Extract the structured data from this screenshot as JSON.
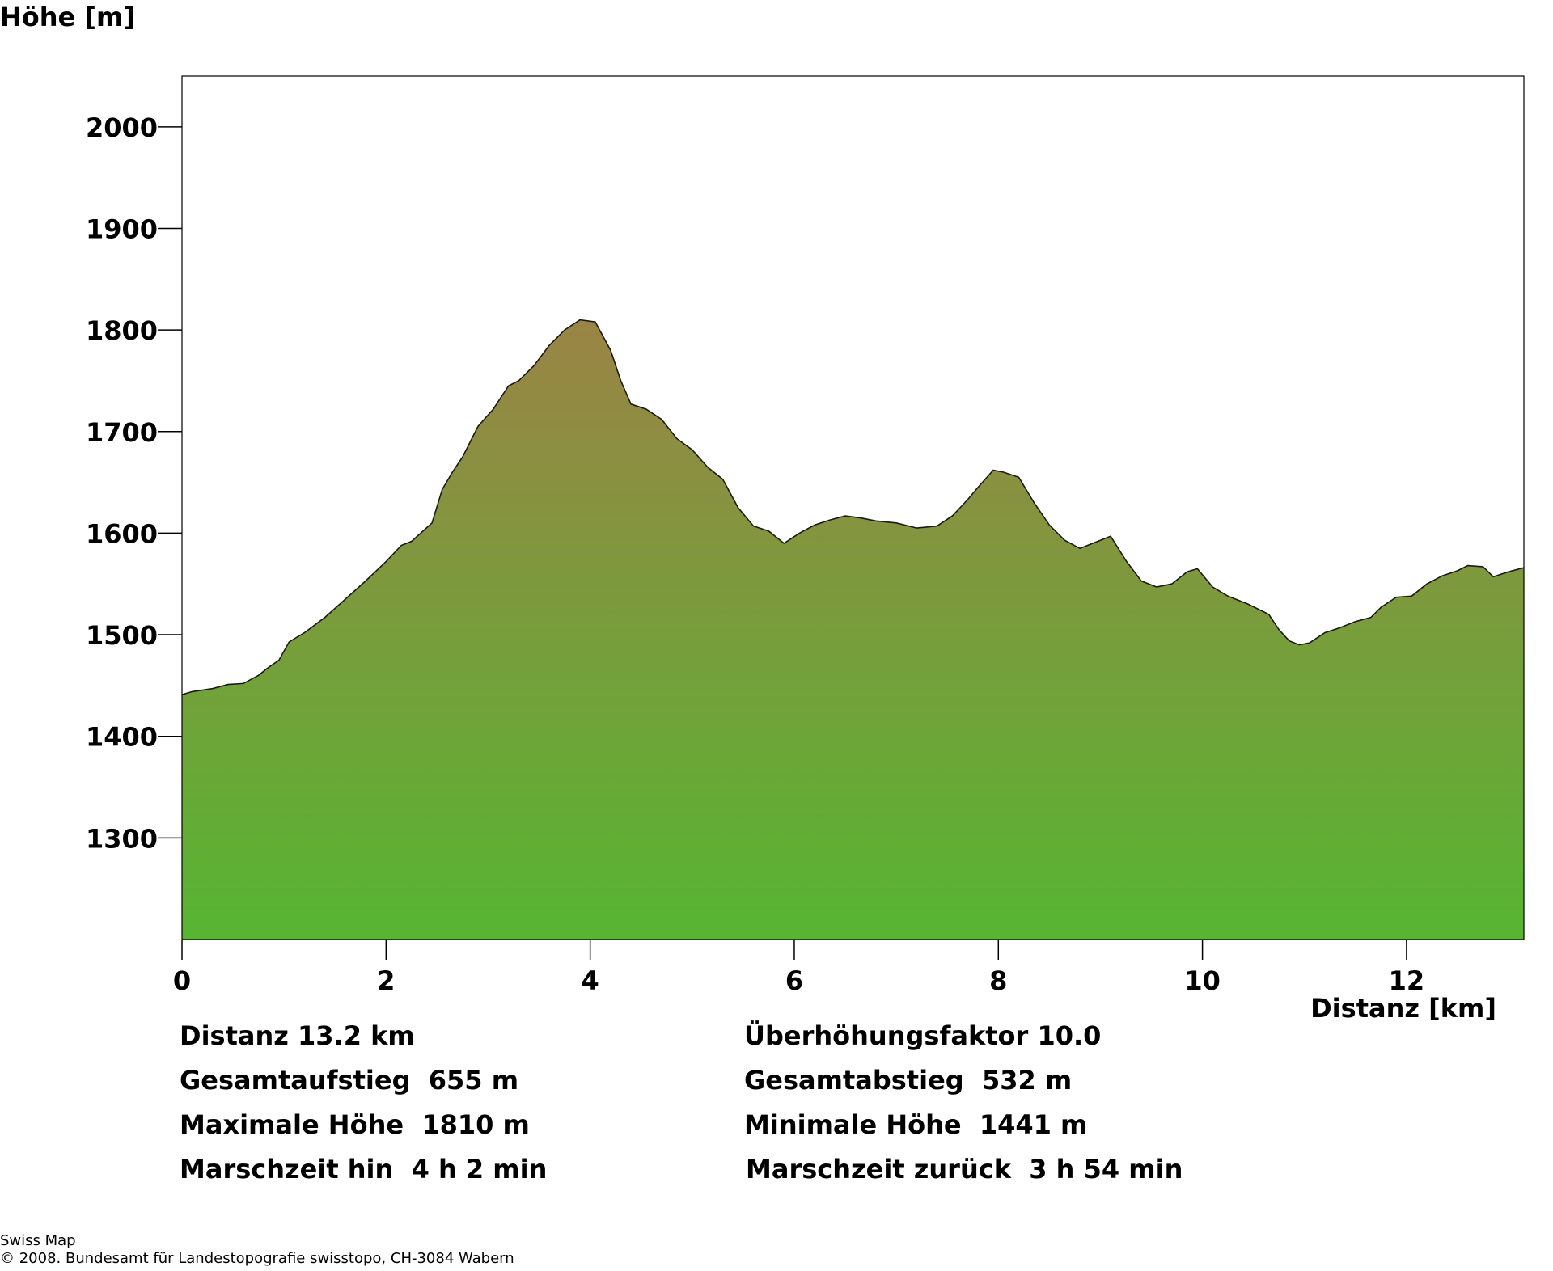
{
  "chart_data": {
    "type": "area",
    "ylabel": "Höhe [m]",
    "xlabel": "Distanz [km]",
    "xlim": [
      0,
      13.15
    ],
    "ylim": [
      1200,
      2050
    ],
    "x_ticks": [
      0,
      2,
      4,
      6,
      8,
      10,
      12
    ],
    "y_ticks": [
      1300,
      1400,
      1500,
      1600,
      1700,
      1800,
      1900,
      2000
    ],
    "fill_top_color": "#9a8445",
    "fill_bottom_color": "#57b532",
    "line_color": "#1a1a1a",
    "series": [
      {
        "x": [
          0,
          0.1,
          0.3,
          0.45,
          0.6,
          0.75,
          0.85,
          0.95,
          1.05,
          1.2,
          1.4,
          1.6,
          1.8,
          2.0,
          2.15,
          2.25,
          2.45,
          2.55,
          2.65,
          2.75,
          2.9,
          3.05,
          3.2,
          3.3,
          3.45,
          3.6,
          3.75,
          3.9,
          4.05,
          4.2,
          4.3,
          4.4,
          4.55,
          4.7,
          4.85,
          5.0,
          5.15,
          5.3,
          5.45,
          5.6,
          5.75,
          5.9,
          6.05,
          6.2,
          6.35,
          6.5,
          6.65,
          6.8,
          7.0,
          7.2,
          7.4,
          7.55,
          7.7,
          7.8,
          7.95,
          8.05,
          8.2,
          8.35,
          8.5,
          8.65,
          8.8,
          9.0,
          9.1,
          9.25,
          9.4,
          9.55,
          9.7,
          9.85,
          9.95,
          10.1,
          10.25,
          10.45,
          10.65,
          10.75,
          10.85,
          10.95,
          11.05,
          11.2,
          11.35,
          11.5,
          11.65,
          11.75,
          11.9,
          12.05,
          12.2,
          12.35,
          12.5,
          12.6,
          12.75,
          12.85,
          13.0,
          13.15
        ],
        "y": [
          1441,
          1444,
          1447,
          1451,
          1452,
          1460,
          1468,
          1475,
          1493,
          1502,
          1517,
          1535,
          1553,
          1572,
          1588,
          1592,
          1610,
          1643,
          1660,
          1675,
          1705,
          1722,
          1745,
          1750,
          1765,
          1785,
          1800,
          1810,
          1808,
          1780,
          1750,
          1727,
          1722,
          1712,
          1693,
          1682,
          1665,
          1653,
          1625,
          1607,
          1602,
          1590,
          1600,
          1608,
          1613,
          1617,
          1615,
          1612,
          1610,
          1605,
          1607,
          1617,
          1633,
          1645,
          1662,
          1660,
          1655,
          1630,
          1608,
          1593,
          1585,
          1593,
          1597,
          1573,
          1553,
          1547,
          1550,
          1562,
          1565,
          1547,
          1538,
          1530,
          1520,
          1505,
          1494,
          1490,
          1492,
          1502,
          1507,
          1513,
          1517,
          1527,
          1537,
          1538,
          1550,
          1558,
          1563,
          1568,
          1567,
          1557,
          1562,
          1566
        ]
      }
    ]
  },
  "stats": {
    "left": [
      "Distanz 13.2 km",
      "Gesamtaufstieg  655 m",
      "Maximale Höhe  1810 m",
      "Marschzeit hin  4 h 2 min"
    ],
    "right": [
      "Überhöhungsfaktor 10.0",
      "Gesamtabstieg  532 m",
      "Minimale Höhe  1441 m",
      "Marschzeit zurück  3 h 54 min"
    ]
  },
  "footer": {
    "line1": "Swiss Map",
    "line2": "© 2008. Bundesamt für Landestopografie swisstopo, CH-3084 Wabern"
  }
}
